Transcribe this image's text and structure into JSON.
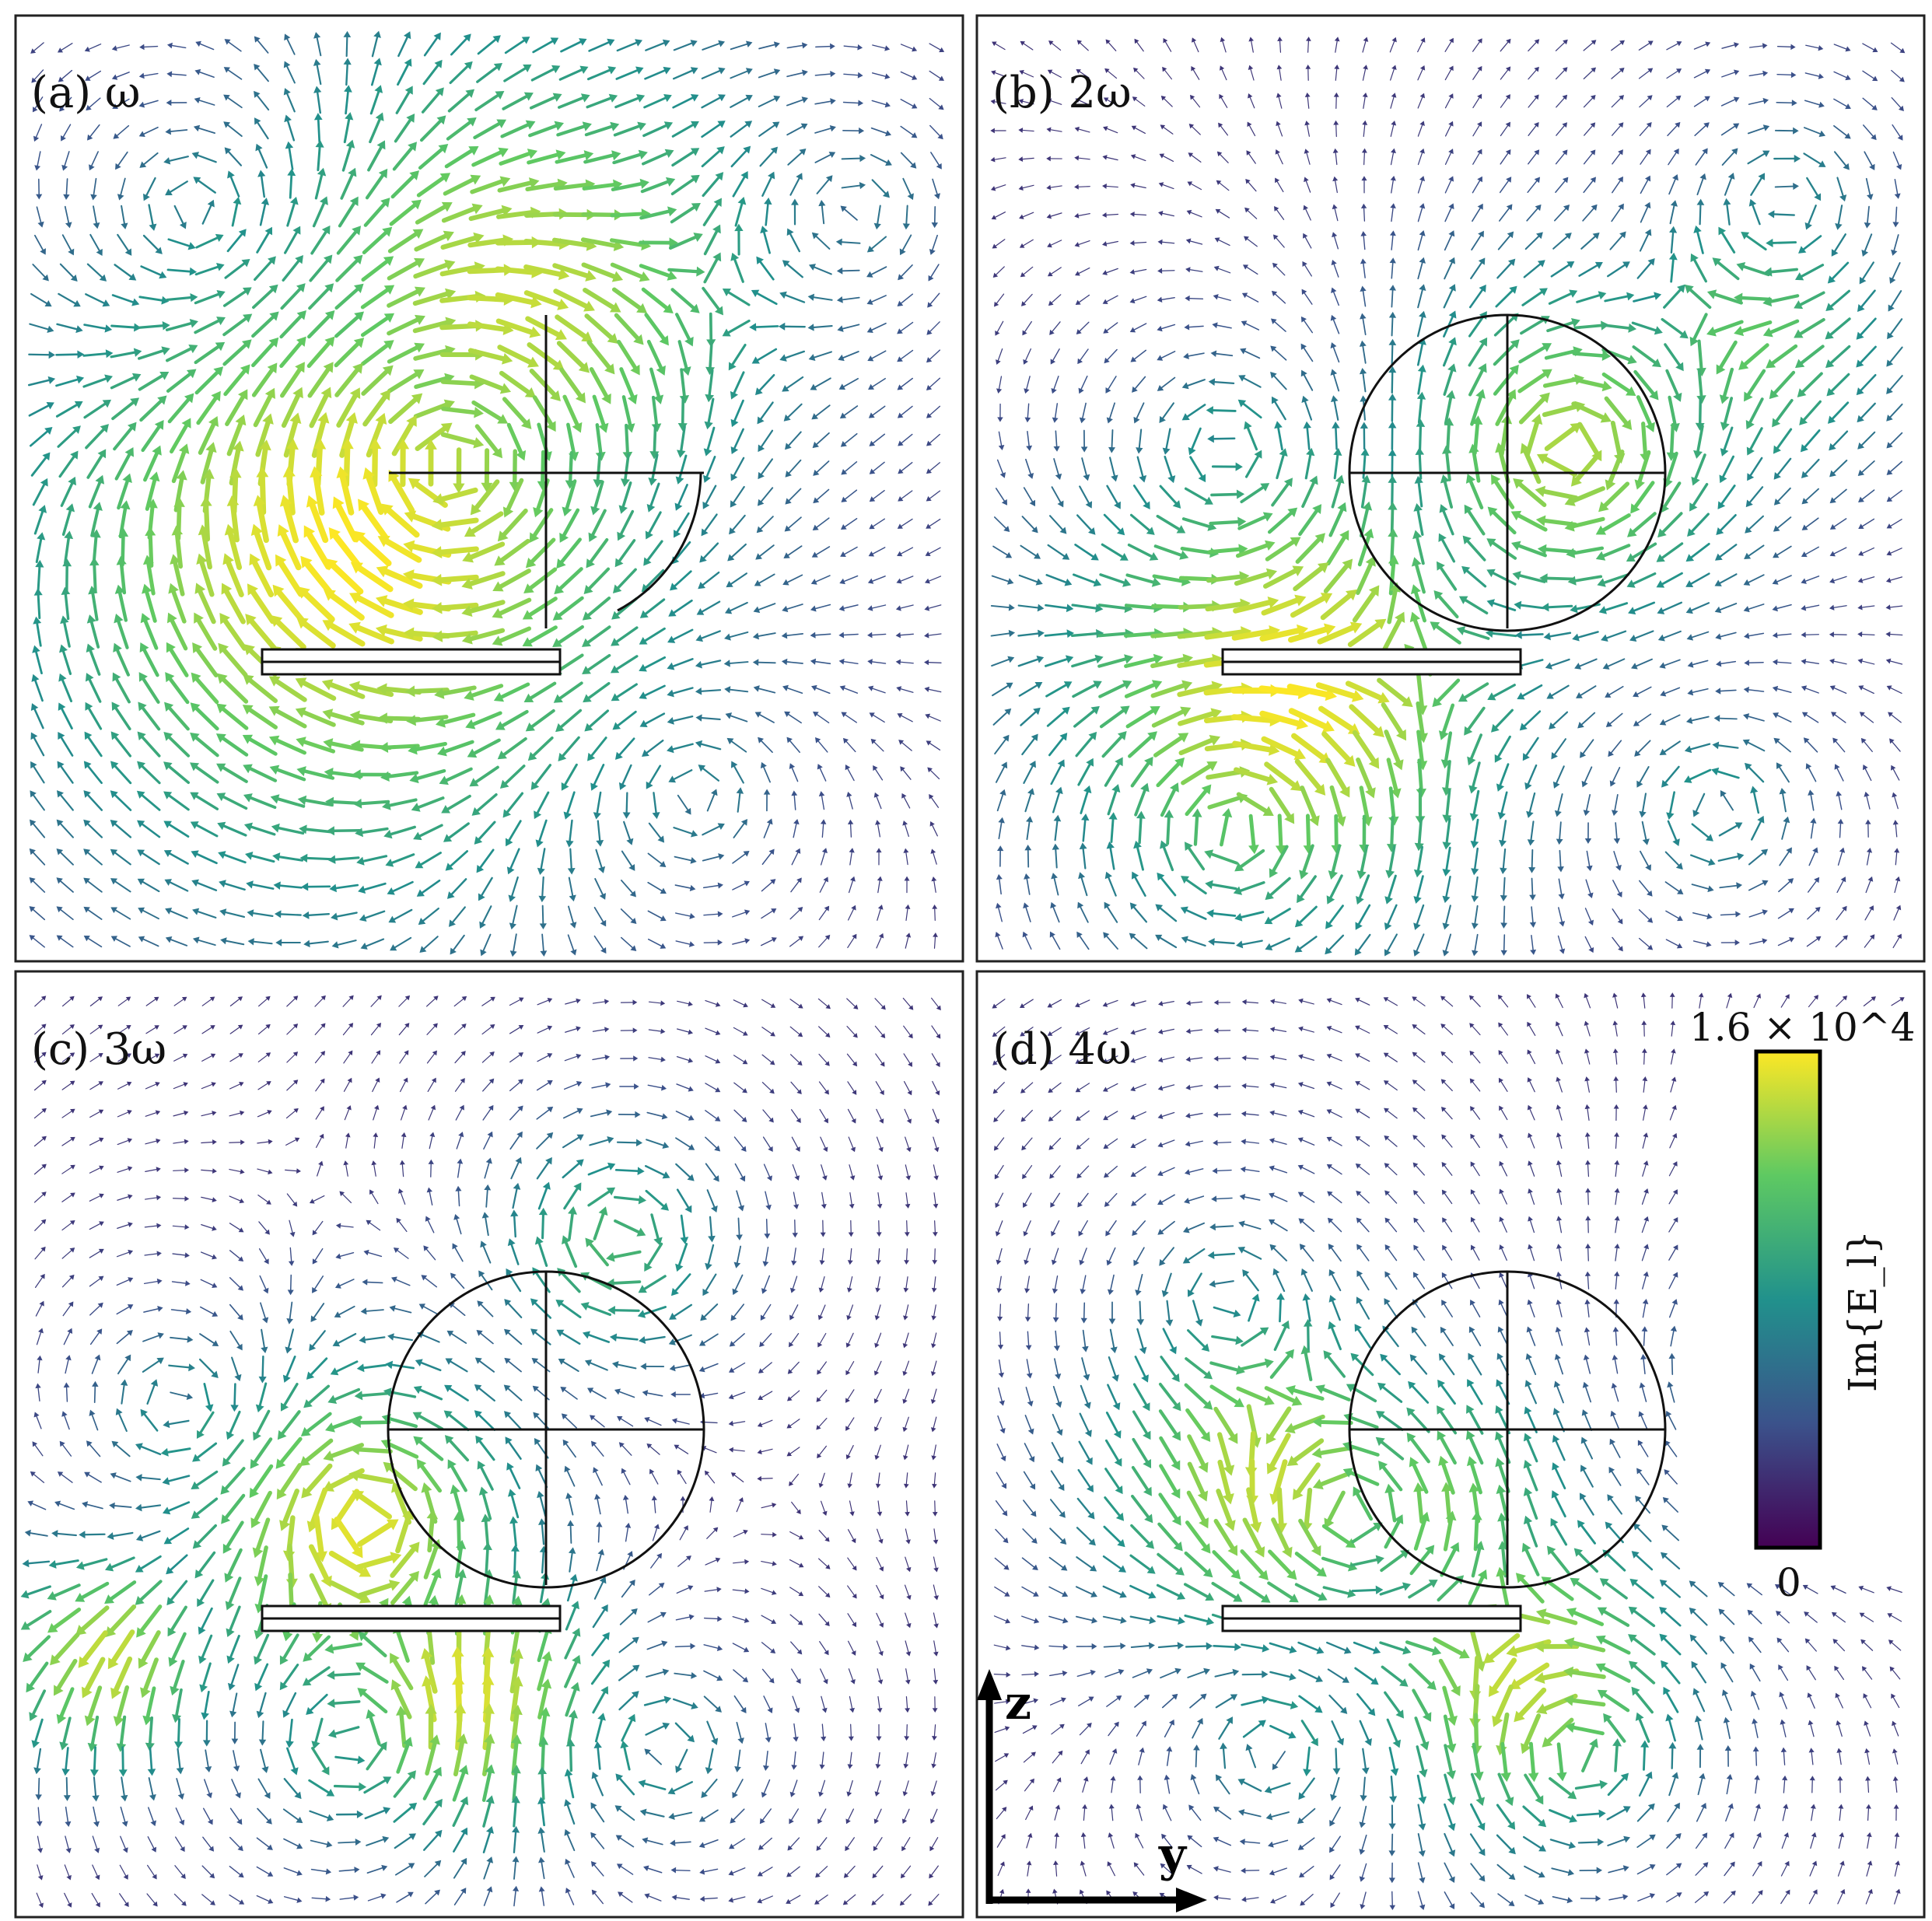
{
  "panels": [
    {
      "label": "(a) ω",
      "harmonic": 1
    },
    {
      "label": "(b) 2ω",
      "harmonic": 2
    },
    {
      "label": "(c) 3ω",
      "harmonic": 3
    },
    {
      "label": "(d) 4ω",
      "harmonic": 4
    }
  ],
  "colorbar": {
    "label": "Im{E_l}",
    "max_label": "1.6 × 10^4",
    "min_label": "0",
    "colormap": [
      "#440154",
      "#3b528b",
      "#21918c",
      "#5ec962",
      "#fde725"
    ]
  },
  "axes": {
    "vertical": "z",
    "horizontal": "y"
  }
}
